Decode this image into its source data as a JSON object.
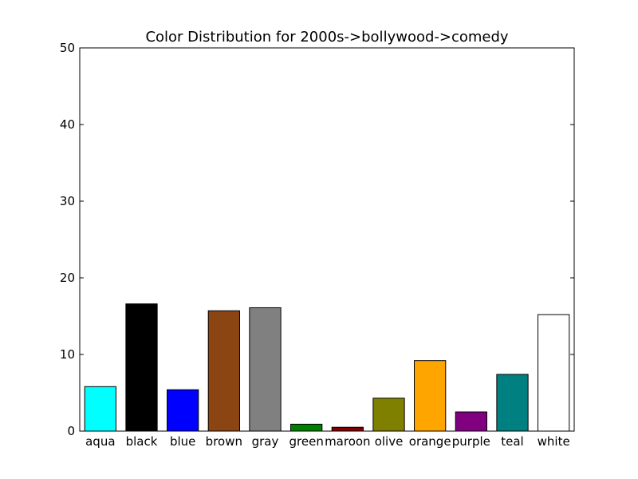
{
  "chart_data": {
    "type": "bar",
    "title": "Color Distribution for 2000s->bollywood->comedy",
    "xlabel": "",
    "ylabel": "",
    "categories": [
      "aqua",
      "black",
      "blue",
      "brown",
      "gray",
      "green",
      "maroon",
      "olive",
      "orange",
      "purple",
      "teal",
      "white"
    ],
    "values": [
      5.8,
      16.6,
      5.4,
      15.7,
      16.1,
      0.9,
      0.5,
      4.3,
      9.2,
      2.5,
      7.4,
      15.2
    ],
    "bar_colors": [
      "#00ffff",
      "#000000",
      "#0000ff",
      "#8b4513",
      "#808080",
      "#008000",
      "#800000",
      "#808000",
      "#ffa500",
      "#800080",
      "#008080",
      "#ffffff"
    ],
    "ylim": [
      0,
      50
    ],
    "yticks": [
      0,
      10,
      20,
      30,
      40,
      50
    ],
    "grid": false,
    "legend": "none"
  }
}
